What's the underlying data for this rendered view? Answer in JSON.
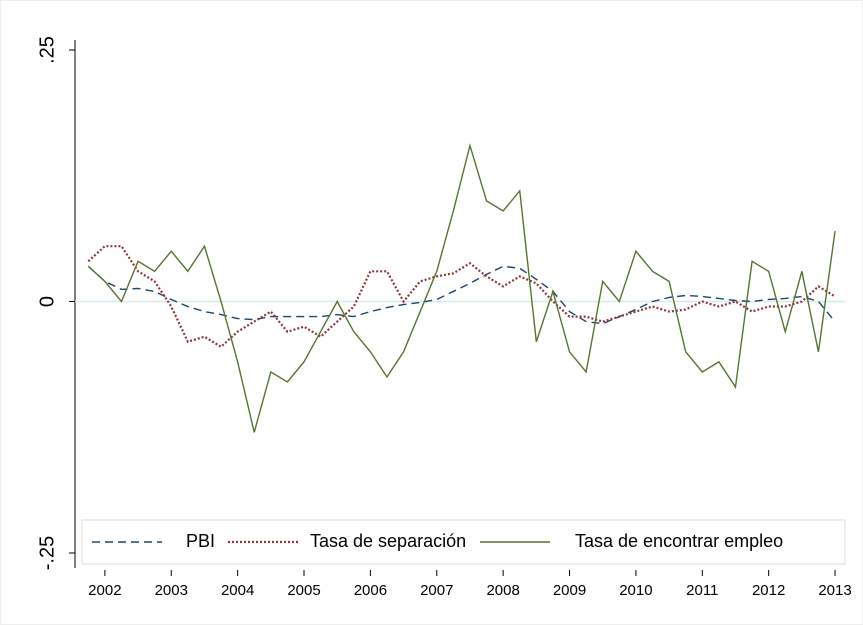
{
  "chart_data": {
    "type": "line",
    "x": [
      2001.75,
      2002,
      2002.25,
      2002.5,
      2002.75,
      2003,
      2003.25,
      2003.5,
      2003.75,
      2004,
      2004.25,
      2004.5,
      2004.75,
      2005,
      2005.25,
      2005.5,
      2005.75,
      2006,
      2006.25,
      2006.5,
      2006.75,
      2007,
      2007.25,
      2007.5,
      2007.75,
      2008,
      2008.25,
      2008.5,
      2008.75,
      2009,
      2009.25,
      2009.5,
      2009.75,
      2010,
      2010.25,
      2010.5,
      2010.75,
      2011,
      2011.25,
      2011.5,
      2011.75,
      2012,
      2012.25,
      2012.5,
      2012.75,
      2013
    ],
    "series": [
      {
        "name": "PBI",
        "color": "#1a476f",
        "dash": "8,5",
        "values": [
          0.035,
          0.02,
          0.012,
          0.013,
          0.01,
          0.002,
          -0.005,
          -0.01,
          -0.013,
          -0.017,
          -0.018,
          -0.015,
          -0.015,
          -0.015,
          -0.015,
          -0.013,
          -0.015,
          -0.01,
          -0.006,
          -0.003,
          -0.001,
          0.002,
          0.01,
          0.018,
          0.027,
          0.035,
          0.033,
          0.022,
          0.01,
          -0.01,
          -0.02,
          -0.022,
          -0.015,
          -0.008,
          0,
          0.004,
          0.006,
          0.005,
          0.003,
          0.001,
          0,
          0.002,
          0.003,
          0.005,
          0,
          -0.02
        ]
      },
      {
        "name": "Tasa de separación",
        "color": "#90353b",
        "dash": "2,2",
        "values": [
          0.04,
          0.055,
          0.055,
          0.03,
          0.02,
          -0.005,
          -0.04,
          -0.035,
          -0.045,
          -0.03,
          -0.02,
          -0.01,
          -0.03,
          -0.025,
          -0.035,
          -0.02,
          -0.005,
          0.03,
          0.03,
          0,
          0.02,
          0.025,
          0.028,
          0.038,
          0.025,
          0.015,
          0.025,
          0.018,
          0,
          -0.015,
          -0.015,
          -0.02,
          -0.015,
          -0.01,
          -0.005,
          -0.01,
          -0.008,
          0,
          -0.005,
          0,
          -0.01,
          -0.005,
          -0.005,
          0,
          0.015,
          0.005
        ]
      },
      {
        "name": "Tasa de encontrar empleo",
        "color": "#55752f",
        "dash": "none",
        "values": [
          0.035,
          0.02,
          0,
          0.04,
          0.03,
          0.05,
          0.03,
          0.055,
          0,
          -0.06,
          -0.13,
          -0.07,
          -0.08,
          -0.06,
          -0.03,
          0,
          -0.03,
          -0.05,
          -0.075,
          -0.05,
          -0.01,
          0.03,
          0.09,
          0.155,
          0.1,
          0.09,
          0.11,
          -0.04,
          0.01,
          -0.05,
          -0.07,
          0.02,
          0,
          0.05,
          0.03,
          0.02,
          -0.05,
          -0.07,
          -0.06,
          -0.085,
          0.04,
          0.03,
          -0.03,
          0.03,
          -0.05,
          0.07
        ]
      }
    ],
    "xlim": [
      2001.55,
      2013.15
    ],
    "xticks": [
      2002,
      2003,
      2004,
      2005,
      2006,
      2007,
      2008,
      2009,
      2010,
      2011,
      2012,
      2013
    ],
    "ylim": [
      -0.25,
      0.25
    ],
    "yticks": [
      {
        "value": -0.25,
        "label": "-.25"
      },
      0,
      {
        "value": 0.25,
        "label": ".25"
      }
    ],
    "grid": true
  }
}
